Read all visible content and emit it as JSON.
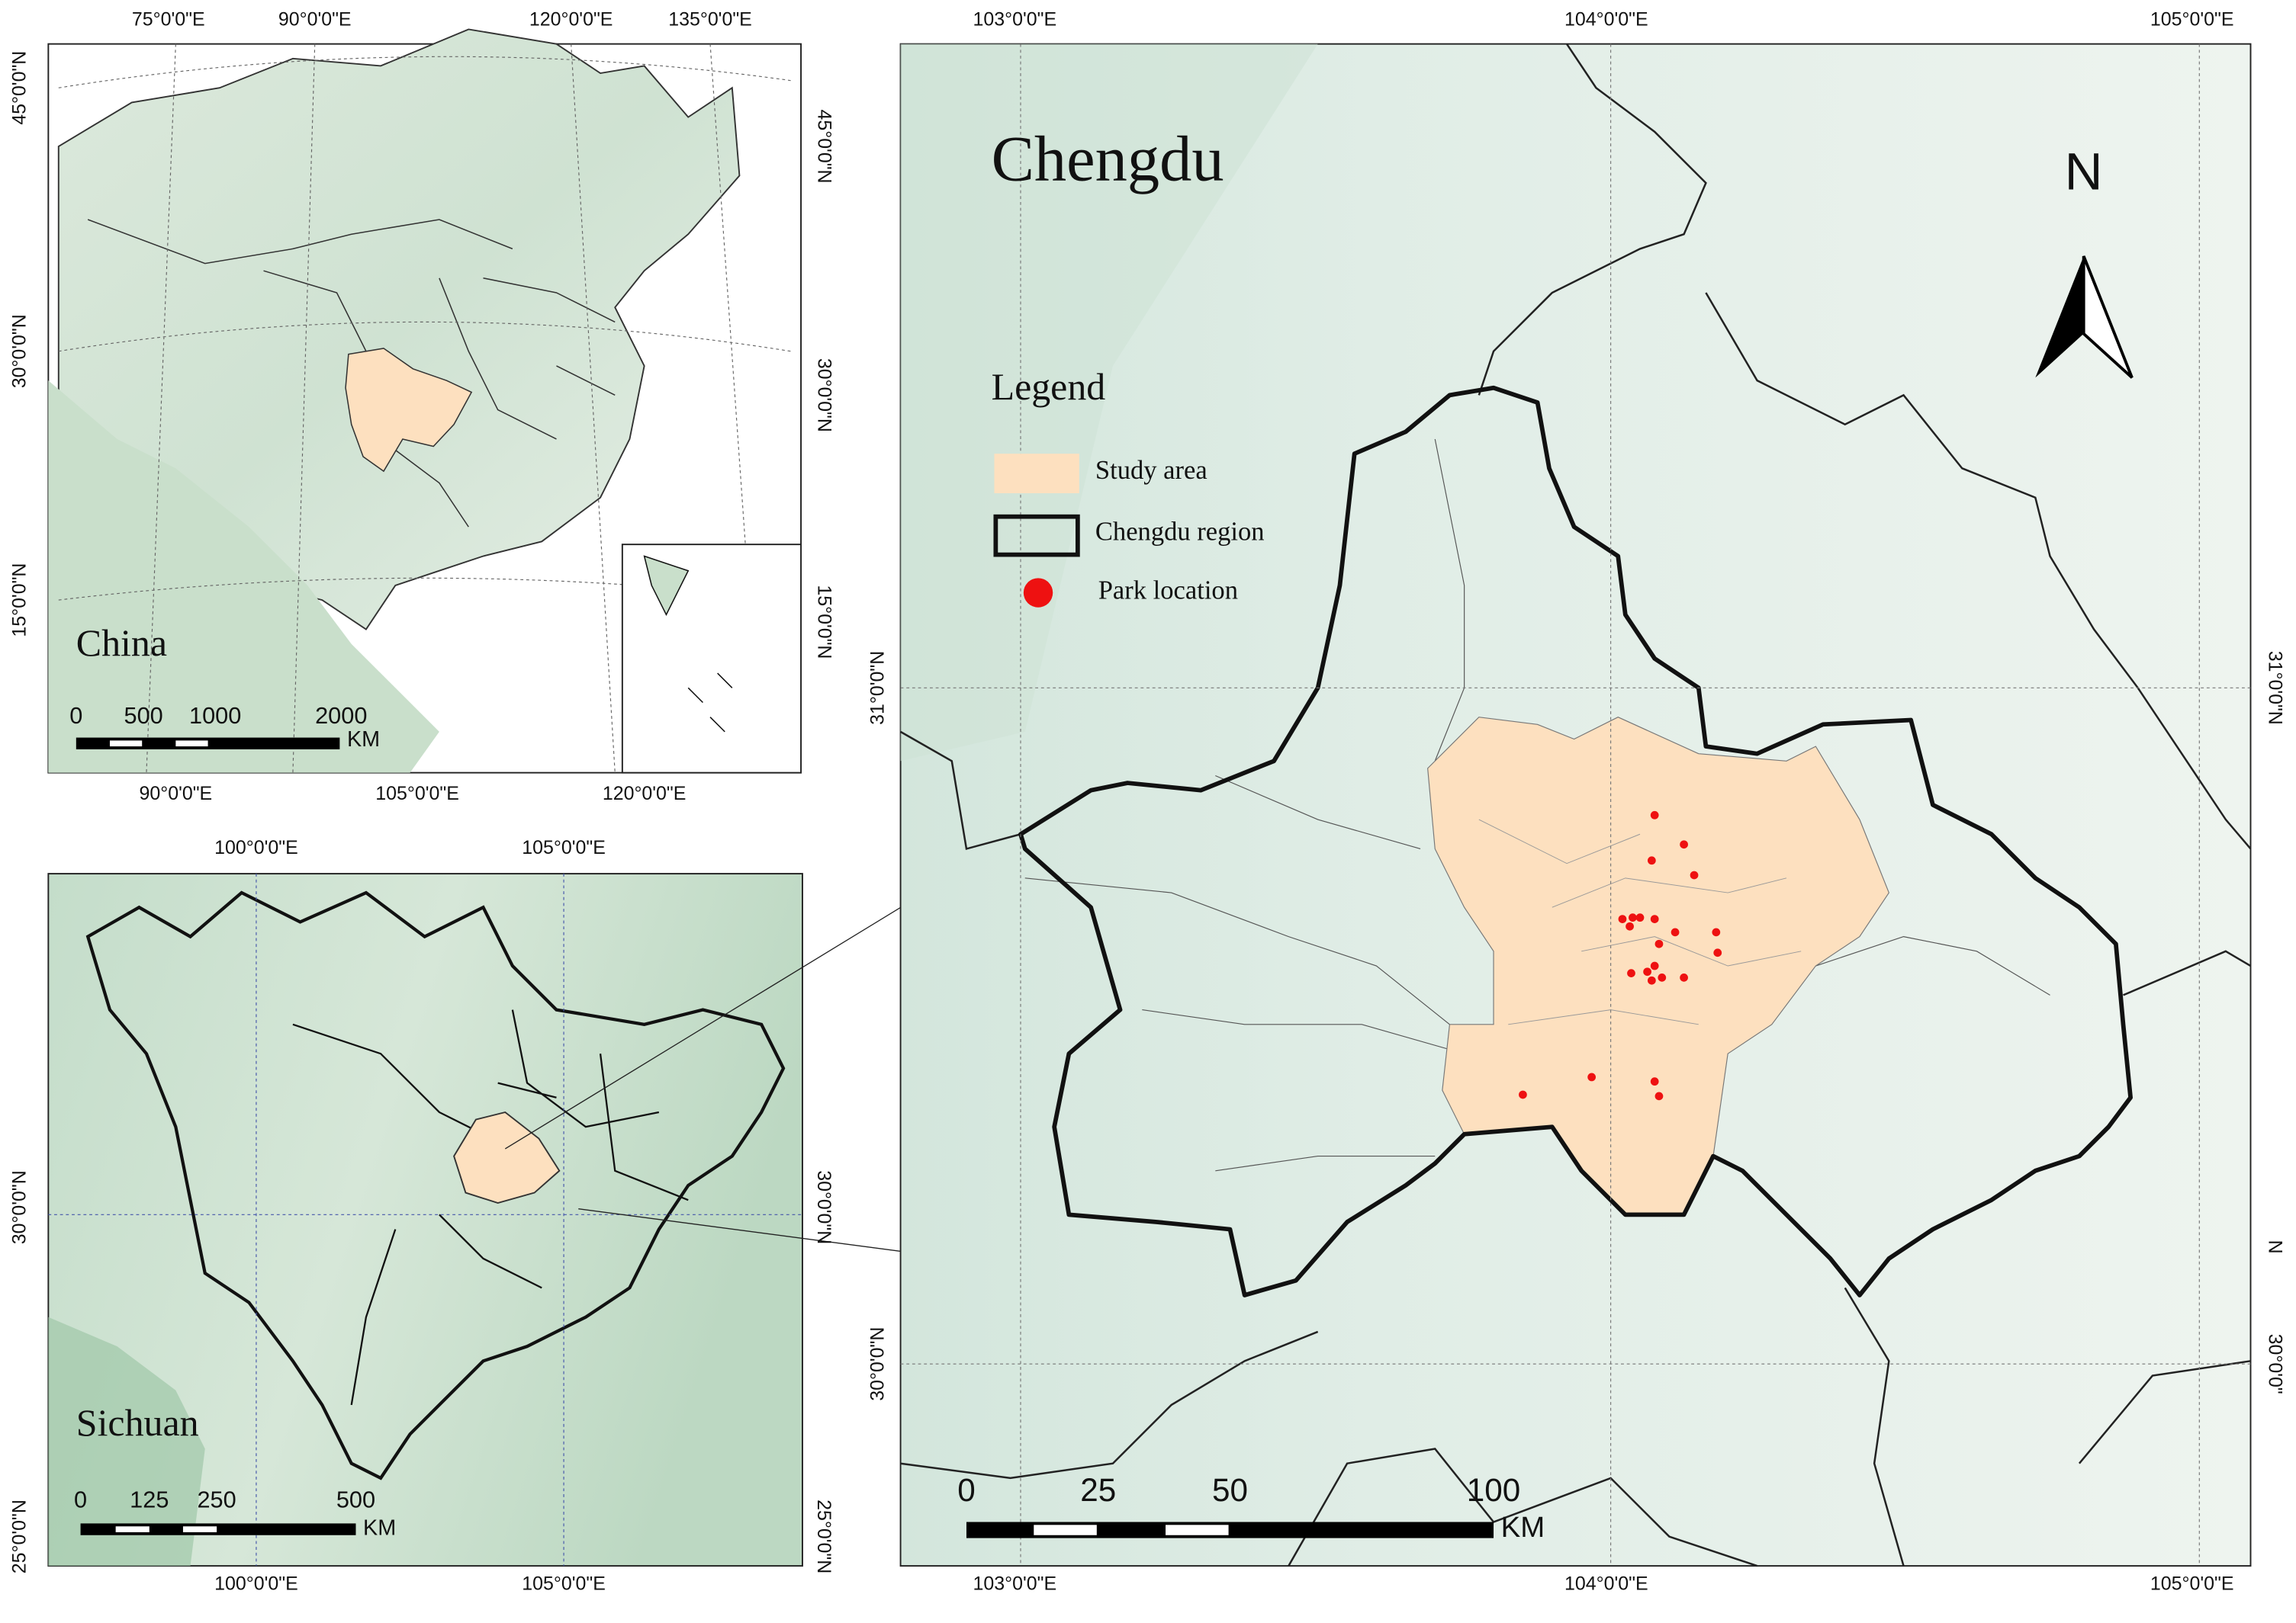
{
  "china": {
    "title": "China",
    "top_labels": [
      "75°0'0\"E",
      "90°0'0\"E",
      "120°0'0\"E",
      "135°0'0\"E"
    ],
    "bottom_labels": [
      "90°0'0\"E",
      "105°0'0\"E",
      "120°0'0\"E"
    ],
    "left_labels": [
      "45°0'0\"N",
      "30°0'0\"N",
      "15°0'0\"N"
    ],
    "right_labels": [
      "45°0'0\"N",
      "30°0'0\"N",
      "15°0'0\"N"
    ],
    "scale_labels": [
      "0",
      "500",
      "1000",
      "2000"
    ],
    "scale_unit": "KM"
  },
  "sichuan": {
    "title": "Sichuan",
    "top_labels": [
      "100°0'0\"E",
      "105°0'0\"E"
    ],
    "bottom_labels": [
      "100°0'0\"E",
      "105°0'0\"E"
    ],
    "left_labels": [
      "30°0'0\"N",
      "25°0'0\"N"
    ],
    "right_labels": [
      "30°0'0\"N",
      "25°0'0\"N"
    ],
    "scale_labels": [
      "0",
      "125",
      "250",
      "500"
    ],
    "scale_unit": "KM"
  },
  "chengdu": {
    "title": "Chengdu",
    "north": "N",
    "legend": {
      "title": "Legend",
      "items": [
        "Study area",
        "Chengdu region",
        "Park location"
      ]
    },
    "top_labels": [
      "103°0'0\"E",
      "104°0'0\"E",
      "105°0'0\"E"
    ],
    "bottom_labels": [
      "103°0'0\"E",
      "104°0'0\"E",
      "105°0'0\"E"
    ],
    "left_labels": [
      "31°0'0\"N",
      "30°0'0\"N"
    ],
    "right_labels": [
      "31°0'0\"N",
      "N",
      "30°0'0\""
    ],
    "scale_labels": [
      "0",
      "25",
      "50",
      "100"
    ],
    "scale_unit": "KM"
  }
}
